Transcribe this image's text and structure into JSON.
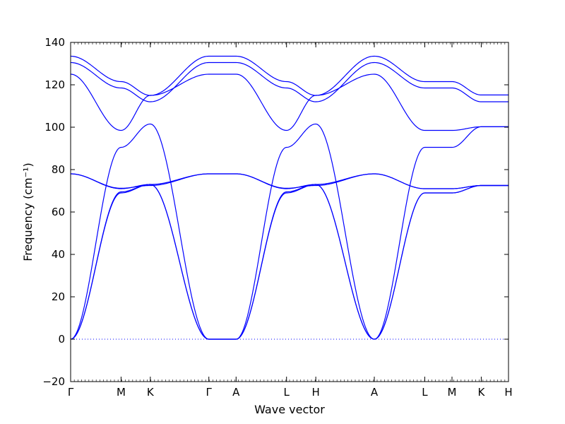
{
  "chart_data": {
    "type": "line",
    "title": "",
    "xlabel": "Wave vector",
    "ylabel": "Frequency (cm⁻¹)",
    "ylim": [
      -20,
      140
    ],
    "yticks": [
      -20,
      0,
      20,
      40,
      60,
      80,
      100,
      120,
      140
    ],
    "grid": false,
    "legend": "none",
    "series_color": "#0000ff",
    "zero_line": {
      "y": 0,
      "style": "dotted",
      "color": "#0000ff"
    },
    "x_segments": [
      {
        "from": "Γ",
        "to": "M",
        "length": 1.0
      },
      {
        "from": "M",
        "to": "K",
        "length": 0.58
      },
      {
        "from": "K",
        "to": "Γ",
        "length": 1.16
      },
      {
        "from": "Γ",
        "to": "A",
        "length": 0.54
      },
      {
        "from": "A",
        "to": "L",
        "length": 1.0
      },
      {
        "from": "L",
        "to": "H",
        "length": 0.58
      },
      {
        "from": "H",
        "to": "A",
        "length": 1.16
      },
      {
        "from": "A",
        "to": "L",
        "length": 1.0
      },
      {
        "from": "L",
        "to": "M",
        "length": 0.54
      },
      {
        "from": "M",
        "to": "K",
        "length": 0.58
      },
      {
        "from": "K",
        "to": "H",
        "length": 0.54
      }
    ],
    "xtick_labels": [
      "Γ",
      "M",
      "K",
      "Γ",
      "A",
      "L",
      "H",
      "A",
      "L",
      "M",
      "K",
      "H"
    ],
    "series": [
      {
        "values_at_ticks": [
          0,
          69,
          73,
          0,
          0,
          69,
          73,
          0,
          69,
          69,
          72.5,
          72.5
        ]
      },
      {
        "values_at_ticks": [
          0,
          69.5,
          73,
          0,
          0,
          69.5,
          73,
          0,
          69,
          69,
          72.5,
          72.5
        ]
      },
      {
        "values_at_ticks": [
          0,
          90.5,
          101.5,
          0,
          0,
          90.5,
          101.5,
          0,
          90.5,
          90.5,
          100.2,
          100.2
        ]
      },
      {
        "values_at_ticks": [
          78,
          71,
          73,
          78,
          78,
          71,
          73,
          78,
          71,
          71,
          72.5,
          72.5
        ]
      },
      {
        "values_at_ticks": [
          78,
          71.2,
          72.5,
          78,
          78,
          71.2,
          72.5,
          78,
          71,
          71,
          72.5,
          72.5
        ]
      },
      {
        "values_at_ticks": [
          125,
          98.5,
          115,
          125,
          125,
          98.5,
          115,
          125,
          98.5,
          98.5,
          100.2,
          100.2
        ]
      },
      {
        "values_at_ticks": [
          130.5,
          118.5,
          112,
          130.5,
          130.5,
          118.5,
          112,
          130.5,
          118.5,
          118.5,
          112,
          112
        ]
      },
      {
        "values_at_ticks": [
          133.5,
          121.5,
          115,
          133.5,
          133.5,
          121.5,
          115,
          133.5,
          121.5,
          121.5,
          115.2,
          115.2
        ]
      }
    ]
  }
}
